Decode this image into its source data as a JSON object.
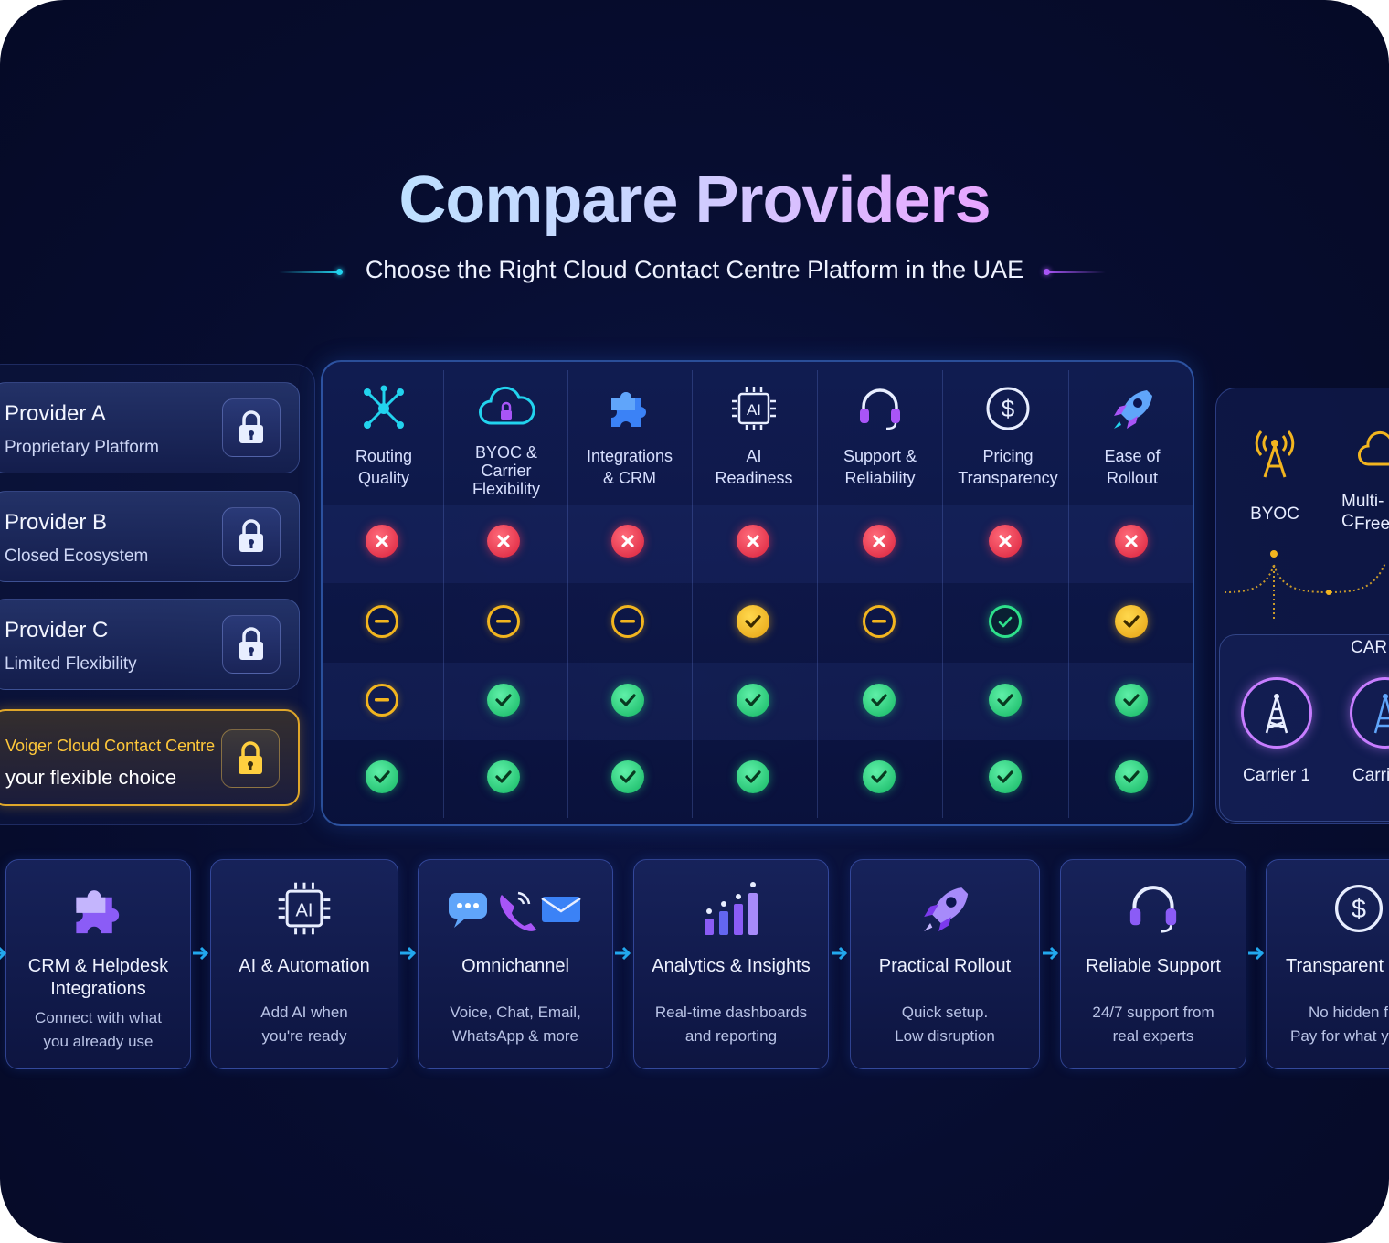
{
  "header": {
    "title": "Compare Providers",
    "subtitle": "Choose the Right Cloud Contact Centre Platform in the UAE"
  },
  "providers": [
    {
      "name": "Provider A",
      "desc": "Proprietary Platform"
    },
    {
      "name": "Provider B",
      "desc": "Closed Ecosystem"
    },
    {
      "name": "Provider C",
      "desc": "Limited Flexibility"
    },
    {
      "name": "Voiger Cloud Contact Centre",
      "desc": "your flexible choice"
    }
  ],
  "columns": [
    {
      "label": "Routing Quality",
      "icon": "network-nodes-icon"
    },
    {
      "label": "BYOC & Carrier Flexibility",
      "icon": "cloud-lock-icon"
    },
    {
      "label": "Integrations & CRM",
      "icon": "puzzle-icon"
    },
    {
      "label": "AI Readiness",
      "icon": "ai-chip-icon"
    },
    {
      "label": "Support & Reliability",
      "icon": "headset-icon"
    },
    {
      "label": "Pricing Transparency",
      "icon": "dollar-icon"
    },
    {
      "label": "Ease of Rollout",
      "icon": "rocket-icon"
    }
  ],
  "matrix": [
    [
      "no",
      "no",
      "no",
      "no",
      "no",
      "no",
      "no"
    ],
    [
      "partial",
      "partial",
      "partial",
      "goldcheck",
      "partial",
      "ring",
      "goldcheck"
    ],
    [
      "partial",
      "yes",
      "yes",
      "yes",
      "yes",
      "yes",
      "yes"
    ],
    [
      "yes",
      "yes",
      "yes",
      "yes",
      "yes",
      "yes",
      "yes"
    ]
  ],
  "right_panel": {
    "items": [
      "BYOC",
      "Multi-C",
      "Freed"
    ],
    "carrier_heading": "CAR",
    "carriers": [
      "Carrier 1",
      "Carri"
    ]
  },
  "features": [
    {
      "title": "CRM & Helpdesk Integrations",
      "desc1": "Connect with what",
      "desc2": "you already use",
      "icon": "puzzle-icon"
    },
    {
      "title": "AI & Automation",
      "desc1": "Add AI when",
      "desc2": "you're ready",
      "icon": "ai-chip-icon"
    },
    {
      "title": "Omnichannel",
      "desc1": "Voice, Chat, Email,",
      "desc2": "WhatsApp & more",
      "icon": "chat-phone-mail-icon"
    },
    {
      "title": "Analytics & Insights",
      "desc1": "Real-time dashboards",
      "desc2": "and reporting",
      "icon": "bar-chart-icon"
    },
    {
      "title": "Practical Rollout",
      "desc1": "Quick setup.",
      "desc2": "Low disruption",
      "icon": "rocket-icon"
    },
    {
      "title": "Reliable Support",
      "desc1": "24/7 support from",
      "desc2": "real experts",
      "icon": "headset-icon"
    },
    {
      "title": "Transparent P",
      "desc1": "No hidden f",
      "desc2": "Pay for what y",
      "icon": "dollar-icon"
    }
  ],
  "colors": {
    "accent_cyan": "#22d3ee",
    "accent_purple": "#a855f7",
    "gold": "#e0a72a",
    "green": "#13b562",
    "red": "#d9203b"
  }
}
